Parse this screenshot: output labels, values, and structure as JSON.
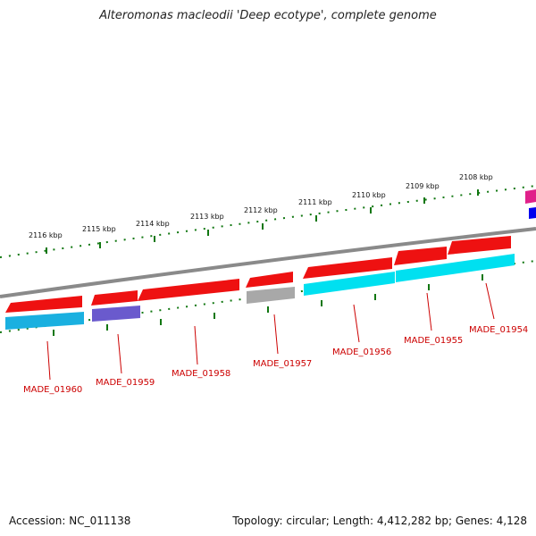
{
  "header": {
    "title": "Alteromonas macleodii 'Deep ecotype', complete genome"
  },
  "footer": {
    "accession": "Accession: NC_011138",
    "topology": "Topology: circular; Length: 4,412,282 bp; Genes: 4,128"
  },
  "ticks": [
    "2108 kbp",
    "2109 kbp",
    "2110 kbp",
    "2111 kbp",
    "2112 kbp",
    "2113 kbp",
    "2114 kbp",
    "2115 kbp",
    "2116 kbp"
  ],
  "genes": [
    "MADE_01954",
    "MADE_01955",
    "MADE_01956",
    "MADE_01957",
    "MADE_01958",
    "MADE_01959",
    "MADE_01960"
  ],
  "colors": {
    "cds": "#ee1111",
    "cyan": "#00e0f0",
    "purple": "#6a5acd",
    "gray": "#a0a0a0",
    "label": "#cc0000",
    "tick": "#117711",
    "backbone": "#888888"
  }
}
